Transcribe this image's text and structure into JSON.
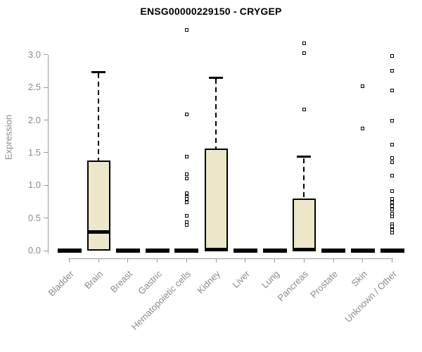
{
  "title": "ENSG00000229150 - CRYGEP",
  "chart_data": {
    "type": "boxplot",
    "title": "ENSG00000229150 - CRYGEP",
    "xlabel": "",
    "ylabel": "Expression",
    "ylim": [
      0,
      3.45
    ],
    "yticks": [
      0.0,
      0.5,
      1.0,
      1.5,
      2.0,
      2.5,
      3.0
    ],
    "grid": false,
    "legend": "none",
    "categories": [
      "Bladder",
      "Brain",
      "Breast",
      "Gastric",
      "Hematopoietic cells",
      "Kidney",
      "Liver",
      "Lung",
      "Pancreas",
      "Prostate",
      "Skin",
      "Unknown / Other"
    ],
    "boxes": [
      {
        "category": "Bladder",
        "whisker_low": 0,
        "q1": 0,
        "median": 0,
        "q3": 0,
        "whisker_high": 0,
        "outliers": []
      },
      {
        "category": "Brain",
        "whisker_low": 0,
        "q1": 0,
        "median": 0.29,
        "q3": 1.38,
        "whisker_high": 2.74,
        "outliers": []
      },
      {
        "category": "Breast",
        "whisker_low": 0,
        "q1": 0,
        "median": 0,
        "q3": 0,
        "whisker_high": 0,
        "outliers": []
      },
      {
        "category": "Gastric",
        "whisker_low": 0,
        "q1": 0,
        "median": 0,
        "q3": 0,
        "whisker_high": 0,
        "outliers": []
      },
      {
        "category": "Hematopoietic cells",
        "whisker_low": 0,
        "q1": 0,
        "median": 0,
        "q3": 0,
        "whisker_high": 0,
        "outliers": [
          3.38,
          2.09,
          1.44,
          1.17,
          1.11,
          0.88,
          0.83,
          0.79,
          0.74,
          0.53,
          0.44,
          0.39
        ]
      },
      {
        "category": "Kidney",
        "whisker_low": 0,
        "q1": 0,
        "median": 0.02,
        "q3": 1.57,
        "whisker_high": 2.65,
        "outliers": []
      },
      {
        "category": "Liver",
        "whisker_low": 0,
        "q1": 0,
        "median": 0,
        "q3": 0,
        "whisker_high": 0,
        "outliers": []
      },
      {
        "category": "Lung",
        "whisker_low": 0,
        "q1": 0,
        "median": 0,
        "q3": 0,
        "whisker_high": 0,
        "outliers": []
      },
      {
        "category": "Pancreas",
        "whisker_low": 0,
        "q1": 0,
        "median": 0.02,
        "q3": 0.8,
        "whisker_high": 1.44,
        "outliers": [
          3.18,
          3.03,
          2.16
        ]
      },
      {
        "category": "Prostate",
        "whisker_low": 0,
        "q1": 0,
        "median": 0,
        "q3": 0,
        "whisker_high": 0,
        "outliers": []
      },
      {
        "category": "Skin",
        "whisker_low": 0,
        "q1": 0,
        "median": 0,
        "q3": 0,
        "whisker_high": 0,
        "outliers": [
          2.52,
          1.87
        ]
      },
      {
        "category": "Unknown / Other",
        "whisker_low": 0,
        "q1": 0,
        "median": 0,
        "q3": 0,
        "whisker_high": 0,
        "outliers": [
          2.98,
          2.76,
          2.46,
          1.99,
          1.62,
          1.42,
          1.35,
          1.15,
          0.91,
          0.79,
          0.74,
          0.69,
          0.63,
          0.57,
          0.52,
          0.41,
          0.37,
          0.32,
          0.28
        ]
      }
    ],
    "colors": {
      "box_fill": "#ede7c9",
      "box_border": "#000000",
      "median": "#000000",
      "whisker": "#000000",
      "outlier": "#000000",
      "axis": "#9a9a9a",
      "axis_text": "#8a8a8a",
      "title_text": "#000000",
      "background": "#ffffff"
    }
  }
}
